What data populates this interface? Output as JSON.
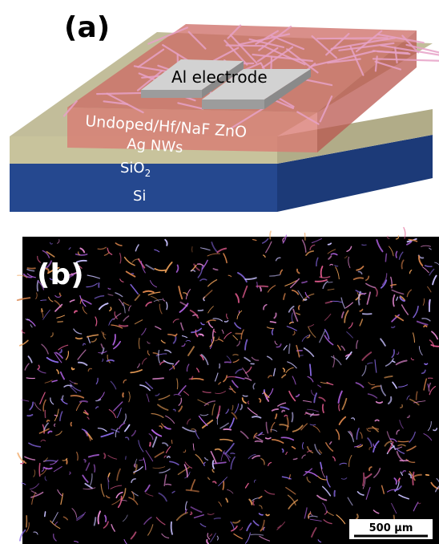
{
  "panel_a": {
    "label": "(a)",
    "labels": {
      "electrode": "Al electrode",
      "zno": "Undoped/Hf/NaF ZnO",
      "agnws": "Ag NWs",
      "sio2_main": "SiO",
      "sio2_sub": "2",
      "si": "Si"
    },
    "colors": {
      "si": "#25488f",
      "sio2": "#c8c39c",
      "zno": "#cc6a63",
      "electrode": "#c8c8c8",
      "nanowire": "#e7a2c7"
    }
  },
  "panel_b": {
    "label": "(b)",
    "scale_bar_label": "500 µm",
    "colors": {
      "background": "#000000",
      "wires": [
        "#b463e6",
        "#e05a8d",
        "#d9834a",
        "#8a6ae8",
        "#e98bd6",
        "#f2a35a",
        "#c8c0ff"
      ]
    }
  }
}
